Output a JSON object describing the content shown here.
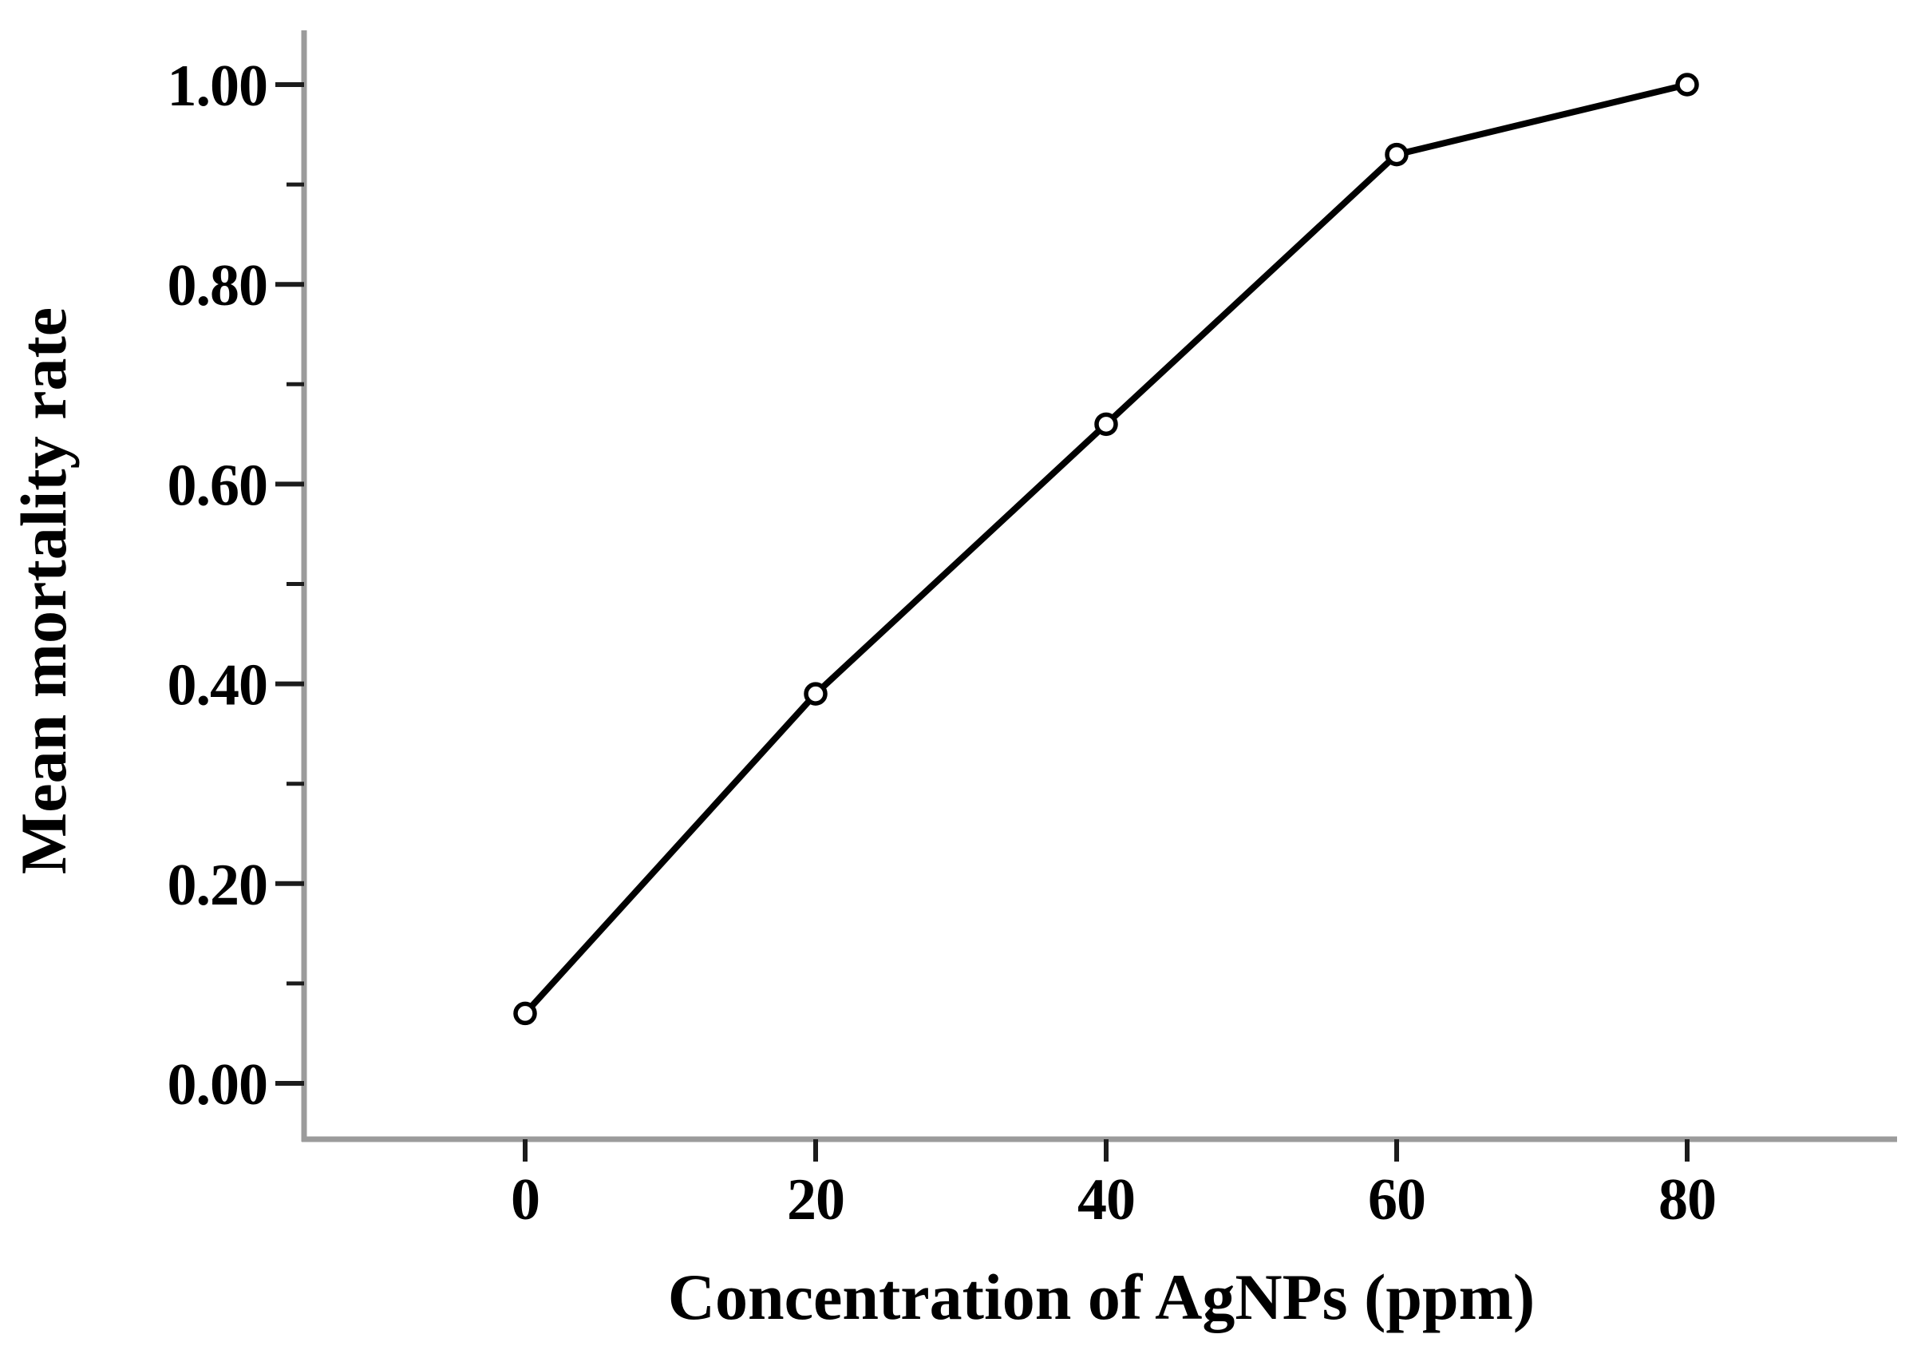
{
  "figure": {
    "background": "#ffffff"
  },
  "chart_data": {
    "type": "line",
    "title": "",
    "xlabel": "Concentration of AgNPs (ppm)",
    "ylabel": "Mean mortality rate",
    "x": [
      0,
      20,
      40,
      60,
      80
    ],
    "y": [
      0.07,
      0.39,
      0.66,
      0.93,
      1.0
    ],
    "series": [
      {
        "name": "Mean mortality rate",
        "x": [
          0,
          20,
          40,
          60,
          80
        ],
        "values": [
          0.07,
          0.39,
          0.66,
          0.93,
          1.0
        ]
      }
    ],
    "x_tick_labels": [
      "0",
      "20",
      "40",
      "60",
      "80"
    ],
    "x_tick_values": [
      0,
      20,
      40,
      60,
      80
    ],
    "y_tick_labels": [
      "0.00",
      "0.20",
      "0.40",
      "0.60",
      "0.80",
      "1.00"
    ],
    "y_tick_values": [
      0.0,
      0.2,
      0.4,
      0.6,
      0.8,
      1.0
    ],
    "y_minor_tick_values": [
      0.1,
      0.3,
      0.5,
      0.7,
      0.9
    ],
    "xlim": [
      0,
      80
    ],
    "ylim": [
      0.0,
      1.0
    ],
    "grid": false,
    "legend_position": "none",
    "marker": "open-circle",
    "colors": {
      "line": "#000000",
      "marker_fill": "#ffffff",
      "marker_stroke": "#000000",
      "axis_line": "#9b9b9b",
      "tick_mark": "#1c1c1c",
      "text": "#000000",
      "background": "#ffffff"
    }
  }
}
